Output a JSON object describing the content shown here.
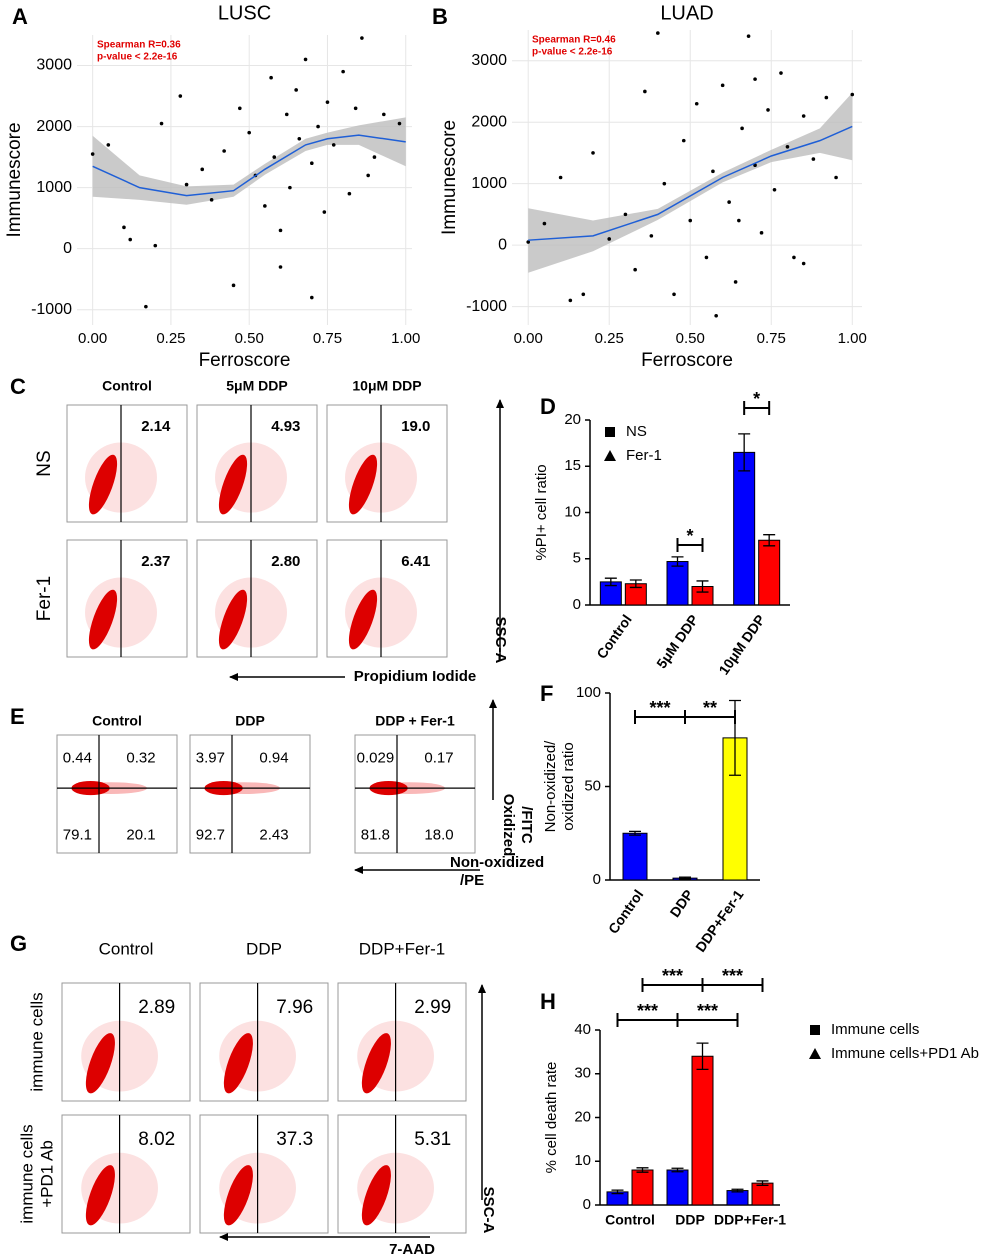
{
  "chart_data": [
    {
      "type": "scatter",
      "letter": "A",
      "title": "LUSC",
      "x_label": "Ferroscore",
      "y_label": "Immunescore",
      "annotations": [
        "Spearman R=0.36",
        "p-value < 2.2e-16"
      ],
      "xlim": [
        -0.05,
        1.02
      ],
      "xticks": [
        {
          "value": 0,
          "label": "0.00"
        },
        {
          "value": 0.25,
          "label": "0.25"
        },
        {
          "value": 0.5,
          "label": "0.50"
        },
        {
          "value": 0.75,
          "label": "0.75"
        },
        {
          "value": 1,
          "label": "1.00"
        }
      ],
      "ylim": [
        -1250,
        3500
      ],
      "yticks": [
        -1000,
        0,
        1000,
        2000,
        3000
      ],
      "grid": true,
      "color": "#000000",
      "fit_color": "#1f5fd6",
      "x": [
        0.0,
        0.05,
        0.1,
        0.12,
        0.17,
        0.2,
        0.22,
        0.28,
        0.3,
        0.35,
        0.38,
        0.42,
        0.45,
        0.47,
        0.5,
        0.52,
        0.55,
        0.57,
        0.58,
        0.6,
        0.62,
        0.63,
        0.65,
        0.66,
        0.68,
        0.7,
        0.7,
        0.72,
        0.74,
        0.75,
        0.77,
        0.8,
        0.82,
        0.84,
        0.86,
        0.88,
        0.9,
        0.93,
        0.98,
        0.6
      ],
      "y": [
        1550,
        1700,
        350,
        150,
        -950,
        50,
        2050,
        2500,
        1050,
        1300,
        800,
        1600,
        -600,
        2300,
        1900,
        1200,
        700,
        2800,
        1500,
        300,
        2200,
        1000,
        2600,
        1800,
        3100,
        -800,
        1400,
        2000,
        600,
        2400,
        1700,
        2900,
        900,
        2300,
        3450,
        1200,
        1500,
        2200,
        2050,
        -300
      ],
      "fit": {
        "x": [
          0,
          0.15,
          0.3,
          0.45,
          0.55,
          0.68,
          0.75,
          0.85,
          1.0
        ],
        "y": [
          1350,
          1000,
          870,
          950,
          1300,
          1700,
          1800,
          1860,
          1750
        ],
        "lower": [
          850,
          800,
          720,
          850,
          1210,
          1600,
          1700,
          1700,
          1350
        ],
        "upper": [
          1850,
          1200,
          1020,
          1050,
          1390,
          1800,
          1900,
          2020,
          2150
        ]
      }
    },
    {
      "type": "scatter",
      "letter": "B",
      "title": "LUAD",
      "x_label": "Ferroscore",
      "y_label": "Immunescore",
      "annotations": [
        "Spearman R=0.46",
        "p-value < 2.2e-16"
      ],
      "xlim": [
        -0.05,
        1.03
      ],
      "xticks": [
        {
          "value": 0,
          "label": "0.00"
        },
        {
          "value": 0.25,
          "label": "0.25"
        },
        {
          "value": 0.5,
          "label": "0.50"
        },
        {
          "value": 0.75,
          "label": "0.75"
        },
        {
          "value": 1,
          "label": "1.00"
        }
      ],
      "ylim": [
        -1300,
        3500
      ],
      "yticks": [
        -1000,
        0,
        1000,
        2000,
        3000
      ],
      "grid": true,
      "color": "#000000",
      "fit_color": "#1f5fd6",
      "x": [
        0.0,
        0.05,
        0.1,
        0.13,
        0.17,
        0.2,
        0.25,
        0.3,
        0.33,
        0.36,
        0.4,
        0.42,
        0.45,
        0.48,
        0.5,
        0.52,
        0.55,
        0.57,
        0.6,
        0.62,
        0.64,
        0.66,
        0.68,
        0.7,
        0.72,
        0.74,
        0.76,
        0.78,
        0.8,
        0.82,
        0.85,
        0.88,
        0.92,
        0.95,
        1.0,
        0.58,
        0.65,
        0.38,
        0.85,
        0.7
      ],
      "y": [
        50,
        350,
        1100,
        -900,
        -800,
        1500,
        100,
        500,
        -400,
        2500,
        3450,
        1000,
        -800,
        1700,
        400,
        2300,
        -200,
        1200,
        2600,
        700,
        -600,
        1900,
        3400,
        1300,
        200,
        2200,
        900,
        2800,
        1600,
        -200,
        2100,
        1400,
        2400,
        1100,
        2450,
        -1150,
        400,
        150,
        -300,
        2700
      ],
      "fit": {
        "x": [
          0,
          0.2,
          0.4,
          0.6,
          0.75,
          0.9,
          1.0
        ],
        "y": [
          80,
          150,
          500,
          1100,
          1450,
          1700,
          1930
        ],
        "lower": [
          -450,
          -100,
          410,
          1020,
          1350,
          1500,
          1380
        ],
        "upper": [
          600,
          400,
          590,
          1180,
          1550,
          1900,
          2480
        ]
      }
    },
    {
      "type": "bar",
      "letter": "D",
      "y_label": "%PI+ cell ratio",
      "categories": [
        "Control",
        "5μM DDP",
        "10μM DDP"
      ],
      "ylim": [
        0,
        20
      ],
      "yticks": [
        0,
        5,
        10,
        15,
        20
      ],
      "annotations": [
        "*",
        "*"
      ],
      "series": [
        {
          "name": "NS",
          "color": "#0000ff",
          "marker": "square",
          "values": [
            2.5,
            4.7,
            16.5
          ],
          "errors": [
            0.4,
            0.5,
            2.0
          ]
        },
        {
          "name": "Fer-1",
          "color": "#ff0000",
          "marker": "triangle",
          "values": [
            2.3,
            2.0,
            7.0
          ],
          "errors": [
            0.4,
            0.6,
            0.6
          ]
        }
      ]
    },
    {
      "type": "bar",
      "letter": "F",
      "y_label": [
        "Non-oxidized/",
        "oxidized ratio"
      ],
      "categories": [
        "Control",
        "DDP",
        "DDP+Fer-1"
      ],
      "ylim": [
        0,
        100
      ],
      "yticks": [
        0,
        50,
        100
      ],
      "annotations": [
        "***",
        "**"
      ],
      "series": [
        {
          "colors": [
            "#0000ff",
            "#0000ff",
            "#ffff00"
          ],
          "values": [
            25,
            1,
            76
          ],
          "errors": [
            1,
            0.5,
            20
          ]
        }
      ]
    },
    {
      "type": "bar",
      "letter": "H",
      "y_label": "% cell death rate",
      "categories": [
        "Control",
        "DDP",
        "DDP+Fer-1"
      ],
      "ylim": [
        0,
        40
      ],
      "yticks": [
        0,
        10,
        20,
        30,
        40
      ],
      "annotations": [
        "***",
        "***",
        "***",
        "***"
      ],
      "series": [
        {
          "name": "Immune cells",
          "color": "#0000ff",
          "marker": "square",
          "values": [
            3,
            8,
            3.3
          ],
          "errors": [
            0.4,
            0.4,
            0.3
          ]
        },
        {
          "name": "Immune cells+PD1 Ab",
          "color": "#ff0000",
          "marker": "triangle",
          "values": [
            8,
            34,
            5
          ],
          "errors": [
            0.5,
            3,
            0.5
          ]
        }
      ]
    }
  ],
  "flow": [
    {
      "letter": "C",
      "columns": [
        "Control",
        "5μM DDP",
        "10μM DDP"
      ],
      "rows": [
        [
          "NS"
        ],
        [
          "Fer-1"
        ]
      ],
      "values": [
        [
          [
            "2.14"
          ],
          [
            "4.93"
          ],
          [
            "19.0"
          ]
        ],
        [
          [
            "2.37"
          ],
          [
            "2.80"
          ],
          [
            "6.41"
          ]
        ]
      ],
      "x_label": [
        "Propidium Iodide"
      ],
      "y_label": [
        "SSC-A"
      ]
    },
    {
      "letter": "E",
      "columns": [
        "Control",
        "DDP",
        "DDP + Fer-1"
      ],
      "rows": [
        []
      ],
      "values": [
        [
          [
            "0.44",
            "0.32",
            "79.1",
            "20.1"
          ],
          [
            "3.97",
            "0.94",
            "92.7",
            "2.43"
          ],
          [
            "0.029",
            "0.17",
            "81.8",
            "18.0"
          ]
        ]
      ],
      "x_label": [
        "Non-oxidized",
        "/PE"
      ],
      "y_label": [
        "Oxidized",
        "/FITC"
      ]
    },
    {
      "letter": "G",
      "columns": [
        "Control",
        "DDP",
        "DDP+Fer-1"
      ],
      "rows": [
        [
          "immune cells"
        ],
        [
          "immune cells",
          "+PD1 Ab"
        ]
      ],
      "values": [
        [
          [
            "2.89"
          ],
          [
            "7.96"
          ],
          [
            "2.99"
          ]
        ],
        [
          [
            "8.02"
          ],
          [
            "37.3"
          ],
          [
            "5.31"
          ]
        ]
      ],
      "x_label": [
        "7-AAD"
      ],
      "y_label": [
        "SSC-A"
      ]
    }
  ]
}
